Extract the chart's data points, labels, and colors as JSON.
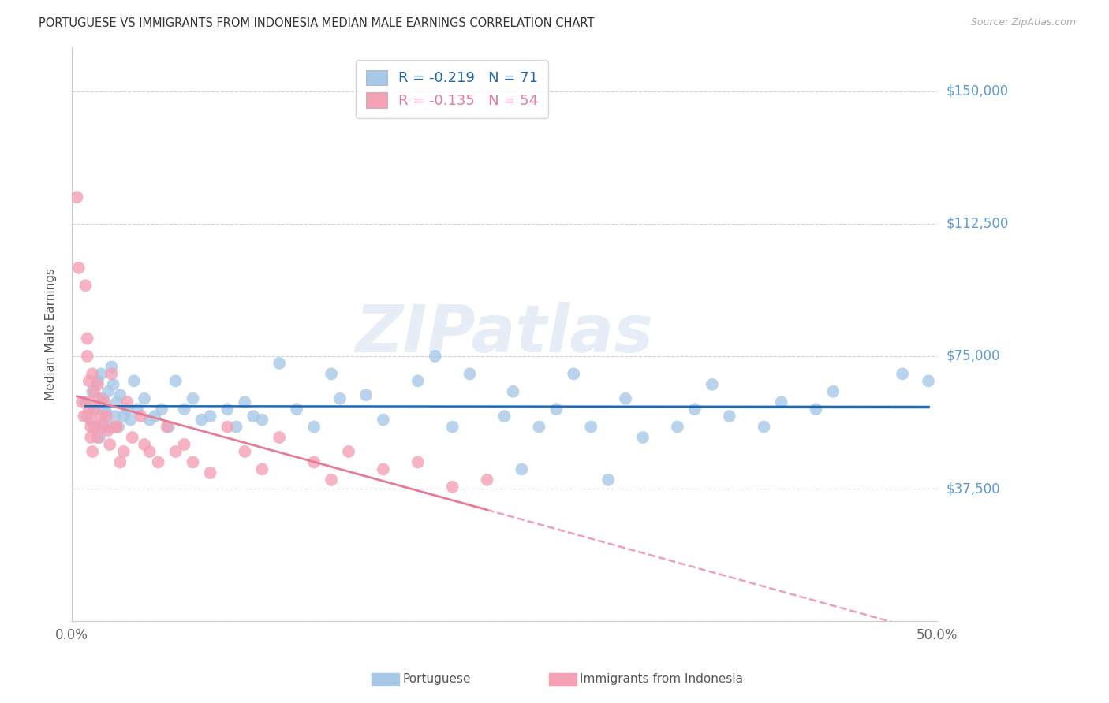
{
  "title": "PORTUGUESE VS IMMIGRANTS FROM INDONESIA MEDIAN MALE EARNINGS CORRELATION CHART",
  "source": "Source: ZipAtlas.com",
  "ylabel": "Median Male Earnings",
  "xlim": [
    0.0,
    0.5
  ],
  "ylim": [
    0,
    162500
  ],
  "yticks": [
    0,
    37500,
    75000,
    112500,
    150000
  ],
  "ytick_labels": [
    "",
    "$37,500",
    "$75,000",
    "$112,500",
    "$150,000"
  ],
  "xticks": [
    0.0,
    0.05,
    0.1,
    0.15,
    0.2,
    0.25,
    0.3,
    0.35,
    0.4,
    0.45,
    0.5
  ],
  "blue_color": "#a8c8e8",
  "pink_color": "#f4a0b5",
  "blue_line_color": "#2166ac",
  "pink_line_color": "#e87a96",
  "blue_R": -0.219,
  "blue_N": 71,
  "pink_R": -0.135,
  "pink_N": 54,
  "blue_label": "Portuguese",
  "pink_label": "Immigrants from Indonesia",
  "watermark_text": "ZIPatlas",
  "blue_scatter_x": [
    0.008,
    0.009,
    0.012,
    0.013,
    0.014,
    0.015,
    0.016,
    0.017,
    0.018,
    0.018,
    0.019,
    0.02,
    0.021,
    0.022,
    0.023,
    0.024,
    0.025,
    0.026,
    0.027,
    0.028,
    0.03,
    0.032,
    0.034,
    0.036,
    0.038,
    0.042,
    0.045,
    0.048,
    0.052,
    0.056,
    0.06,
    0.065,
    0.07,
    0.075,
    0.08,
    0.09,
    0.095,
    0.1,
    0.105,
    0.11,
    0.12,
    0.13,
    0.14,
    0.15,
    0.155,
    0.17,
    0.18,
    0.2,
    0.21,
    0.22,
    0.23,
    0.25,
    0.255,
    0.26,
    0.27,
    0.28,
    0.29,
    0.3,
    0.31,
    0.32,
    0.33,
    0.35,
    0.36,
    0.37,
    0.38,
    0.4,
    0.41,
    0.43,
    0.44,
    0.48,
    0.495
  ],
  "blue_scatter_y": [
    62000,
    58000,
    65000,
    55000,
    60000,
    68000,
    52000,
    70000,
    63000,
    56000,
    60000,
    59000,
    65000,
    55000,
    72000,
    67000,
    58000,
    62000,
    55000,
    64000,
    58000,
    60000,
    57000,
    68000,
    60000,
    63000,
    57000,
    58000,
    60000,
    55000,
    68000,
    60000,
    63000,
    57000,
    58000,
    60000,
    55000,
    62000,
    58000,
    57000,
    73000,
    60000,
    55000,
    70000,
    63000,
    64000,
    57000,
    68000,
    75000,
    55000,
    70000,
    58000,
    65000,
    43000,
    55000,
    60000,
    70000,
    55000,
    40000,
    63000,
    52000,
    55000,
    60000,
    67000,
    58000,
    55000,
    62000,
    60000,
    65000,
    70000,
    68000
  ],
  "pink_scatter_x": [
    0.003,
    0.004,
    0.006,
    0.007,
    0.008,
    0.009,
    0.009,
    0.01,
    0.01,
    0.01,
    0.011,
    0.011,
    0.011,
    0.012,
    0.012,
    0.013,
    0.013,
    0.014,
    0.015,
    0.015,
    0.016,
    0.017,
    0.018,
    0.019,
    0.02,
    0.021,
    0.022,
    0.023,
    0.025,
    0.026,
    0.028,
    0.03,
    0.032,
    0.035,
    0.04,
    0.042,
    0.045,
    0.05,
    0.055,
    0.06,
    0.065,
    0.07,
    0.08,
    0.09,
    0.1,
    0.11,
    0.12,
    0.14,
    0.15,
    0.16,
    0.18,
    0.2,
    0.22,
    0.24
  ],
  "pink_scatter_y": [
    120000,
    100000,
    62000,
    58000,
    95000,
    80000,
    75000,
    68000,
    62000,
    60000,
    57000,
    55000,
    52000,
    48000,
    70000,
    65000,
    60000,
    55000,
    52000,
    67000,
    63000,
    58000,
    55000,
    62000,
    58000,
    54000,
    50000,
    70000,
    55000,
    55000,
    45000,
    48000,
    62000,
    52000,
    58000,
    50000,
    48000,
    45000,
    55000,
    48000,
    50000,
    45000,
    42000,
    55000,
    48000,
    43000,
    52000,
    45000,
    40000,
    48000,
    43000,
    45000,
    38000,
    40000
  ],
  "pink_trendline_x_end": 0.5
}
